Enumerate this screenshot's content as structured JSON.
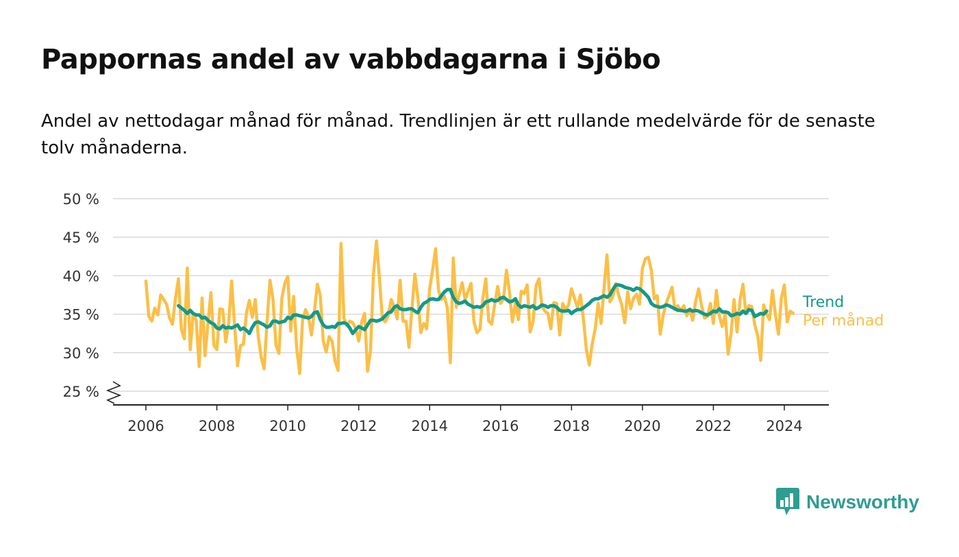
{
  "title": "Pappornas andel av vabbdagarna i Sjöbo",
  "subtitle": "Andel av nettodagar månad för månad. Trendlinjen är ett rullande medelvärde för de senaste tolv månaderna.",
  "brand": {
    "name": "Newsworthy",
    "color": "#2e9e92"
  },
  "chart_data": {
    "type": "line",
    "x_axis": {
      "type": "time",
      "ticks": [
        2006,
        2008,
        2010,
        2012,
        2014,
        2016,
        2018,
        2020,
        2022,
        2024
      ],
      "range": [
        2005,
        2025.2
      ]
    },
    "y_axis": {
      "ticks": [
        25,
        30,
        35,
        40,
        45,
        50
      ],
      "tick_labels": [
        "25 %",
        "30 %",
        "35 %",
        "40 %",
        "45 %",
        "50 %"
      ],
      "range": [
        25,
        50
      ],
      "axis_break": true
    },
    "grid": "horizontal",
    "series": [
      {
        "name": "Per månad",
        "color": "#fbbf47",
        "start": "2006-01",
        "values": [
          39.3,
          34.7,
          34.1,
          35.8,
          34.9,
          37.5,
          36.9,
          36.3,
          34.5,
          33.7,
          37.0,
          39.6,
          33.0,
          31.8,
          41.0,
          30.4,
          35.1,
          34.2,
          28.2,
          37.1,
          29.6,
          33.8,
          37.8,
          31.0,
          30.4,
          35.7,
          35.6,
          31.4,
          33.8,
          39.3,
          33.6,
          28.3,
          30.9,
          31.1,
          35.1,
          36.8,
          34.6,
          36.9,
          32.1,
          29.4,
          27.9,
          34.1,
          39.4,
          36.9,
          31.0,
          29.9,
          37.1,
          39.0,
          39.9,
          32.8,
          37.3,
          30.6,
          27.3,
          34.2,
          35.6,
          34.7,
          32.3,
          35.3,
          38.9,
          37.4,
          31.5,
          30.1,
          32.1,
          31.5,
          28.9,
          27.7,
          44.2,
          34.5,
          33.5,
          34.1,
          33.9,
          33.1,
          31.5,
          34.0,
          35.1,
          27.6,
          30.3,
          40.2,
          44.5,
          39.7,
          34.4,
          34.0,
          34.8,
          36.9,
          36.0,
          34.4,
          39.4,
          34.1,
          34.1,
          30.7,
          35.7,
          40.2,
          37.2,
          32.6,
          33.8,
          33.1,
          38.3,
          40.7,
          43.5,
          38.1,
          36.9,
          37.3,
          35.8,
          28.7,
          42.3,
          35.9,
          37.6,
          39.1,
          36.9,
          38.0,
          39.0,
          34.0,
          32.6,
          33.0,
          37.1,
          39.6,
          34.1,
          33.7,
          36.2,
          38.6,
          36.4,
          37.0,
          40.7,
          37.9,
          34.0,
          36.5,
          34.3,
          38.0,
          37.7,
          38.8,
          32.7,
          34.0,
          38.7,
          39.6,
          36.0,
          35.4,
          35.1,
          33.1,
          36.5,
          36.4,
          32.3,
          36.4,
          35.6,
          36.2,
          38.3,
          37.1,
          35.9,
          37.5,
          34.5,
          30.5,
          28.4,
          31.1,
          33.1,
          36.4,
          33.8,
          38.4,
          42.7,
          36.6,
          37.3,
          39.0,
          37.4,
          36.2,
          33.9,
          37.9,
          35.7,
          37.1,
          37.6,
          36.3,
          41.0,
          42.2,
          42.4,
          40.7,
          37.0,
          37.4,
          32.4,
          34.8,
          36.4,
          37.4,
          38.5,
          35.6,
          36.1,
          35.4,
          36.1,
          34.8,
          35.7,
          34.2,
          36.7,
          38.3,
          36.1,
          34.5,
          34.7,
          36.4,
          33.8,
          38.1,
          34.8,
          33.4,
          35.0,
          29.8,
          32.5,
          36.9,
          32.7,
          36.8,
          38.9,
          35.1,
          36.1,
          36.0,
          33.6,
          32.2,
          29.0,
          36.2,
          35.0,
          34.3,
          38.1,
          34.9,
          32.4,
          37.1,
          38.8,
          34.0,
          35.4,
          35.1
        ]
      },
      {
        "name": "Trend",
        "color": "#14998a",
        "start": "2006-12",
        "values": [
          36.1,
          35.8,
          35.5,
          35.1,
          35.5,
          35.1,
          34.9,
          34.9,
          34.5,
          34.6,
          34.2,
          33.9,
          33.7,
          33.2,
          33.1,
          33.5,
          33.2,
          33.3,
          33.2,
          33.4,
          33.6,
          33.0,
          33.2,
          32.9,
          32.5,
          33.3,
          33.9,
          34.0,
          33.8,
          33.6,
          33.3,
          33.5,
          34.1,
          34.1,
          33.9,
          34.0,
          34.1,
          34.6,
          34.4,
          34.9,
          34.9,
          34.8,
          34.7,
          34.6,
          34.5,
          34.7,
          35.2,
          35.3,
          34.3,
          33.6,
          33.3,
          33.3,
          33.4,
          33.3,
          33.8,
          33.8,
          33.9,
          33.7,
          33.2,
          32.5,
          33.0,
          33.4,
          33.2,
          33.0,
          33.6,
          34.2,
          34.2,
          34.1,
          34.2,
          34.4,
          34.8,
          35.2,
          35.3,
          35.9,
          36.1,
          35.7,
          35.6,
          35.6,
          35.7,
          35.7,
          35.4,
          35.2,
          35.9,
          36.4,
          36.6,
          36.9,
          37.0,
          36.9,
          36.9,
          37.4,
          37.9,
          38.2,
          38.2,
          37.2,
          36.6,
          36.4,
          36.5,
          36.7,
          36.3,
          36.1,
          35.9,
          36.0,
          35.9,
          36.1,
          36.6,
          36.7,
          36.9,
          36.7,
          36.8,
          37.1,
          37.2,
          36.9,
          36.6,
          36.7,
          37.0,
          36.2,
          35.9,
          36.1,
          36.0,
          35.9,
          36.1,
          35.7,
          35.9,
          36.2,
          36.1,
          35.9,
          36.1,
          36.1,
          35.9,
          35.5,
          35.4,
          35.4,
          35.5,
          35.1,
          35.4,
          35.6,
          35.6,
          35.8,
          36.1,
          36.4,
          36.8,
          37.0,
          37.0,
          37.2,
          37.4,
          37.2,
          37.5,
          38.2,
          38.8,
          38.8,
          38.7,
          38.5,
          38.4,
          38.3,
          38.1,
          38.4,
          38.3,
          38.0,
          37.6,
          37.2,
          36.4,
          36.1,
          36.0,
          35.9,
          36.0,
          36.2,
          36.1,
          35.9,
          35.7,
          35.5,
          35.5,
          35.4,
          35.4,
          35.6,
          35.4,
          35.5,
          35.4,
          35.2,
          35.0,
          34.9,
          35.1,
          35.4,
          35.3,
          35.7,
          35.3,
          35.3,
          35.2,
          34.8,
          34.9,
          35.1,
          35.0,
          35.4,
          35.1,
          35.6,
          35.5,
          34.7,
          34.9,
          35.1,
          35.0,
          35.4
        ]
      }
    ]
  }
}
